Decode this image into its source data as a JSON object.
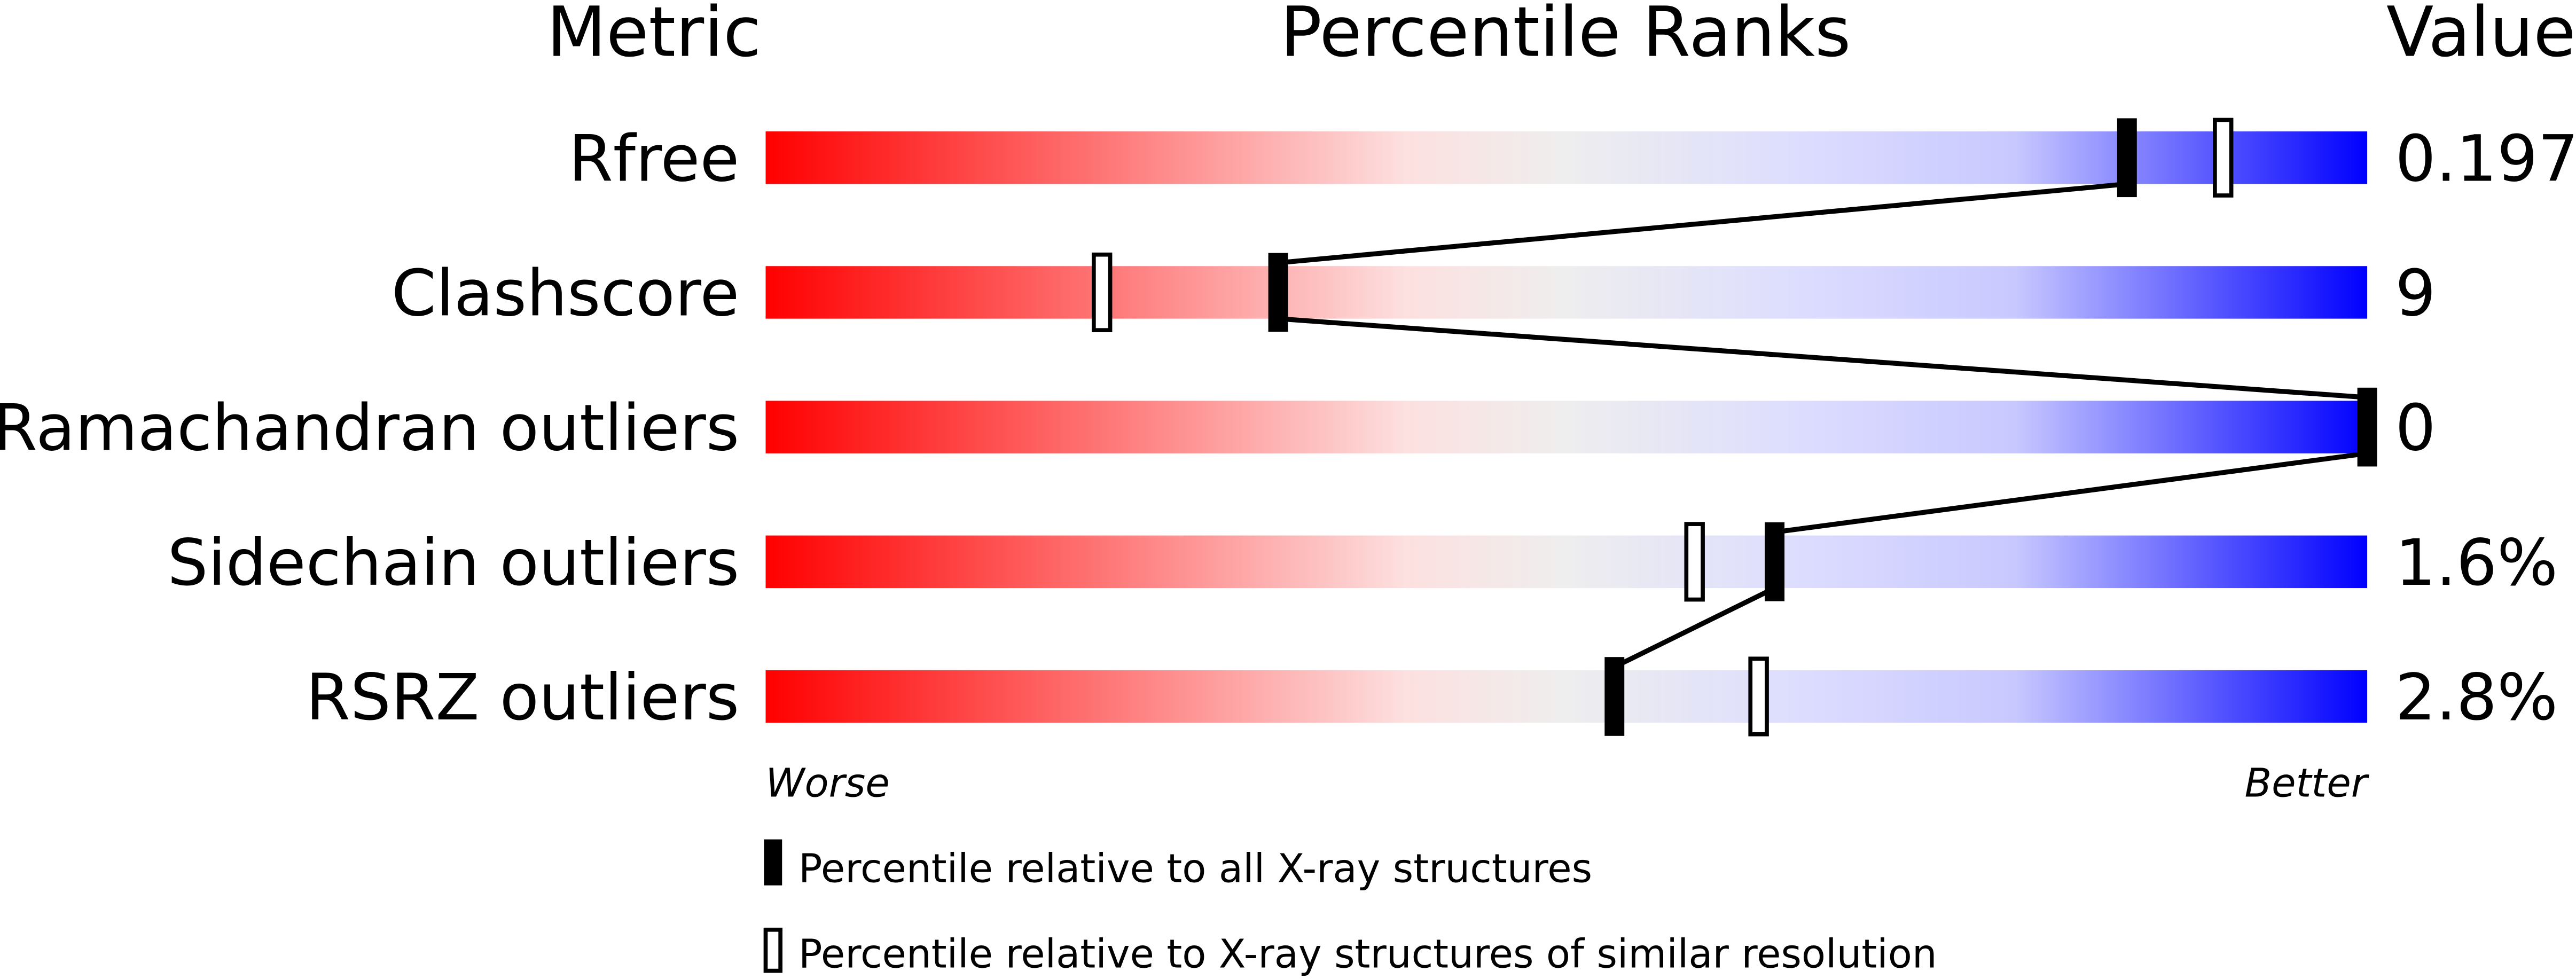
{
  "chart_data": {
    "type": "percentile-slider",
    "headers": {
      "metric": "Metric",
      "ranks": "Percentile Ranks",
      "value": "Value"
    },
    "scale": {
      "min": 0,
      "max": 100,
      "left_label": "Worse",
      "right_label": "Better"
    },
    "gradient_colors": [
      "#ff0000",
      "#fde0e0",
      "#eeeeee",
      "#dcdcff",
      "#0000ff"
    ],
    "metrics": [
      {
        "name": "Rfree",
        "value": "0.197",
        "percentile_all": 85,
        "percentile_similar": 91
      },
      {
        "name": "Clashscore",
        "value": "9",
        "percentile_all": 32,
        "percentile_similar": 21
      },
      {
        "name": "Ramachandran outliers",
        "value": "0",
        "percentile_all": 100,
        "percentile_similar": 100
      },
      {
        "name": "Sidechain outliers",
        "value": "1.6%",
        "percentile_all": 63,
        "percentile_similar": 58
      },
      {
        "name": "RSRZ outliers",
        "value": "2.8%",
        "percentile_all": 53,
        "percentile_similar": 62
      }
    ],
    "legend": [
      {
        "marker": "filled",
        "label": "Percentile relative to all X-ray structures"
      },
      {
        "marker": "open",
        "label": "Percentile relative to X-ray structures of similar resolution"
      }
    ]
  }
}
